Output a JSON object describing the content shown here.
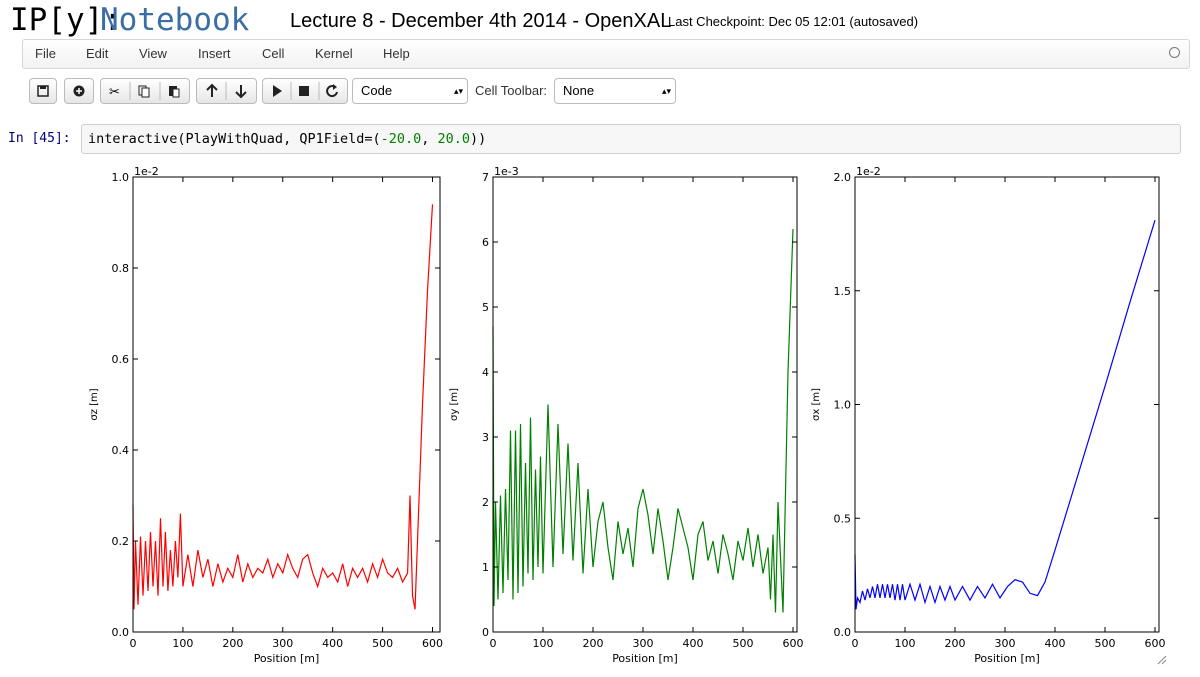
{
  "header": {
    "logo": "IP[y]:",
    "logo_word": "Notebook",
    "notebook_title": "Lecture 8 - December 4th 2014 - OpenXAL",
    "checkpoint": "Last Checkpoint: Dec 05 12:01 (autosaved)"
  },
  "menu": [
    "File",
    "Edit",
    "View",
    "Insert",
    "Cell",
    "Kernel",
    "Help"
  ],
  "toolbar": {
    "cell_type": "Code",
    "cell_toolbar_label": "Cell Toolbar:",
    "cell_toolbar_value": "None"
  },
  "cell": {
    "prompt": "In [45]:",
    "code": [
      "interactive(PlayWithQuad, QP1Field=(",
      "-20.0",
      ", ",
      "20.0",
      "))"
    ]
  },
  "chart_data": [
    {
      "type": "line",
      "color": "#ff0000",
      "offset_label": "1e-2",
      "xlabel": "Position [m]",
      "ylabel": "σz [m]",
      "xlim": [
        0,
        615
      ],
      "xticks": [
        0,
        100,
        200,
        300,
        400,
        500,
        600
      ],
      "ylim": [
        0,
        1.0
      ],
      "yticks": [
        {
          "value": 0,
          "label": "0.0"
        },
        {
          "value": 0.2,
          "label": "0.2"
        },
        {
          "value": 0.4,
          "label": "0.4"
        },
        {
          "value": 0.6,
          "label": "0.6"
        },
        {
          "value": 0.8,
          "label": "0.8"
        },
        {
          "value": 1.0,
          "label": "1.0"
        }
      ],
      "x": [
        0,
        2,
        5,
        10,
        15,
        20,
        25,
        30,
        35,
        40,
        45,
        50,
        55,
        60,
        65,
        70,
        75,
        80,
        85,
        90,
        95,
        100,
        110,
        120,
        130,
        140,
        150,
        160,
        170,
        180,
        190,
        200,
        210,
        220,
        230,
        240,
        250,
        260,
        270,
        280,
        290,
        300,
        310,
        320,
        330,
        340,
        350,
        360,
        370,
        380,
        390,
        400,
        410,
        420,
        430,
        440,
        450,
        460,
        470,
        480,
        490,
        500,
        510,
        520,
        530,
        540,
        550,
        555,
        560,
        565,
        570,
        580,
        590,
        600
      ],
      "values": [
        0.28,
        0.05,
        0.2,
        0.06,
        0.21,
        0.08,
        0.2,
        0.09,
        0.22,
        0.1,
        0.2,
        0.08,
        0.25,
        0.1,
        0.22,
        0.09,
        0.18,
        0.1,
        0.2,
        0.12,
        0.26,
        0.1,
        0.17,
        0.1,
        0.18,
        0.12,
        0.16,
        0.1,
        0.15,
        0.11,
        0.14,
        0.12,
        0.17,
        0.11,
        0.15,
        0.12,
        0.14,
        0.13,
        0.16,
        0.12,
        0.15,
        0.13,
        0.17,
        0.14,
        0.12,
        0.16,
        0.17,
        0.13,
        0.1,
        0.14,
        0.12,
        0.13,
        0.11,
        0.15,
        0.1,
        0.14,
        0.12,
        0.14,
        0.11,
        0.15,
        0.12,
        0.16,
        0.13,
        0.12,
        0.14,
        0.11,
        0.13,
        0.3,
        0.08,
        0.05,
        0.2,
        0.5,
        0.75,
        0.94
      ]
    },
    {
      "type": "line",
      "color": "#008000",
      "offset_label": "1e-3",
      "xlabel": "Position [m]",
      "ylabel": "σy [m]",
      "xlim": [
        0,
        608
      ],
      "xticks": [
        0,
        100,
        200,
        300,
        400,
        500,
        600
      ],
      "ylim": [
        0,
        7
      ],
      "yticks": [
        0,
        1,
        2,
        3,
        4,
        5,
        6,
        7
      ],
      "x": [
        0,
        2,
        5,
        10,
        15,
        20,
        25,
        30,
        35,
        40,
        45,
        50,
        55,
        60,
        65,
        70,
        75,
        80,
        85,
        90,
        95,
        100,
        110,
        120,
        130,
        140,
        150,
        160,
        170,
        180,
        190,
        200,
        210,
        220,
        230,
        240,
        250,
        260,
        270,
        280,
        290,
        300,
        310,
        320,
        330,
        340,
        350,
        360,
        370,
        380,
        390,
        400,
        410,
        420,
        430,
        440,
        450,
        460,
        470,
        480,
        490,
        500,
        510,
        520,
        530,
        540,
        550,
        555,
        560,
        565,
        570,
        580,
        590,
        600
      ],
      "values": [
        4.7,
        0.4,
        2,
        0.5,
        2.1,
        0.6,
        2.2,
        0.8,
        3.1,
        0.5,
        3.1,
        0.6,
        3.2,
        0.7,
        2.6,
        0.9,
        3.3,
        0.8,
        2.5,
        1.0,
        2.7,
        0.9,
        3.5,
        1.0,
        3.2,
        1.2,
        2.9,
        1.1,
        2.6,
        0.9,
        2.2,
        1.0,
        1.7,
        2.0,
        1.3,
        0.8,
        1.7,
        1.2,
        1.6,
        1.0,
        1.9,
        2.2,
        1.8,
        1.2,
        1.9,
        1.4,
        0.8,
        1.3,
        1.9,
        1.6,
        1.3,
        0.8,
        1.5,
        1.7,
        1.1,
        1.4,
        0.9,
        1.5,
        1.2,
        0.8,
        1.4,
        1.1,
        1.6,
        1.0,
        1.5,
        0.9,
        1.3,
        0.5,
        1.5,
        0.3,
        2.0,
        0.3,
        4.0,
        6.2
      ]
    },
    {
      "type": "line",
      "color": "#0000ff",
      "offset_label": "1e-2",
      "xlabel": "Position [m]",
      "ylabel": "σx [m]",
      "xlim": [
        0,
        608
      ],
      "xticks": [
        0,
        100,
        200,
        300,
        400,
        500,
        600
      ],
      "ylim": [
        0,
        2.0
      ],
      "yticks": [
        {
          "value": 0,
          "label": "0.0"
        },
        {
          "value": 0.5,
          "label": "0.5"
        },
        {
          "value": 1.0,
          "label": "1.0"
        },
        1.5,
        {
          "value": 2.0,
          "label": "2.0"
        }
      ],
      "x": [
        0,
        2,
        5,
        10,
        15,
        20,
        25,
        30,
        35,
        40,
        45,
        50,
        55,
        60,
        65,
        70,
        75,
        80,
        85,
        90,
        95,
        100,
        110,
        120,
        130,
        140,
        150,
        160,
        170,
        180,
        190,
        200,
        215,
        230,
        245,
        260,
        275,
        290,
        305,
        320,
        335,
        350,
        365,
        380,
        400,
        450,
        500,
        550,
        600
      ],
      "values": [
        0.34,
        0.1,
        0.15,
        0.13,
        0.18,
        0.14,
        0.19,
        0.15,
        0.2,
        0.15,
        0.21,
        0.15,
        0.21,
        0.15,
        0.21,
        0.15,
        0.21,
        0.14,
        0.21,
        0.14,
        0.21,
        0.14,
        0.21,
        0.14,
        0.21,
        0.13,
        0.2,
        0.13,
        0.2,
        0.14,
        0.2,
        0.14,
        0.2,
        0.14,
        0.2,
        0.15,
        0.21,
        0.15,
        0.2,
        0.23,
        0.22,
        0.17,
        0.16,
        0.22,
        0.36,
        0.72,
        1.08,
        1.45,
        1.81
      ]
    }
  ]
}
